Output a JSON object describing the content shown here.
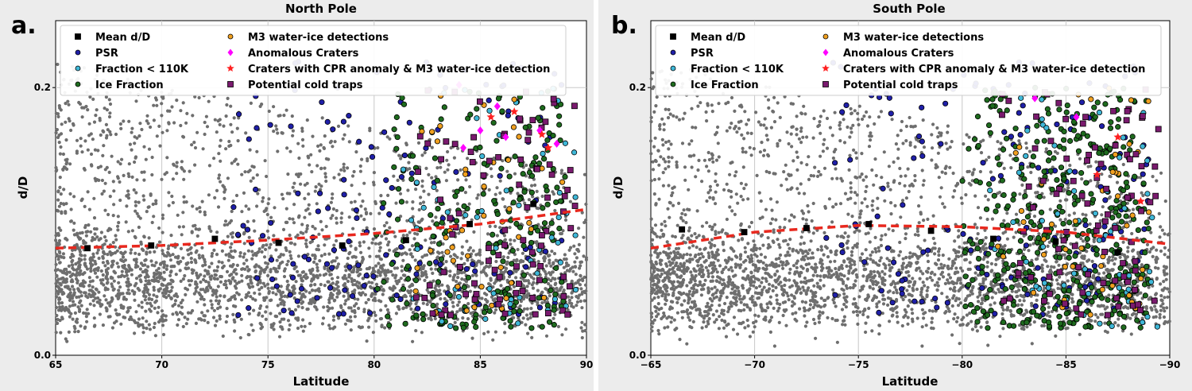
{
  "legend_entries": [
    {
      "label": "Mean d/D",
      "color": "#000000",
      "marker": "square"
    },
    {
      "label": "PSR",
      "color": "#1f1fa8",
      "marker": "circle"
    },
    {
      "label": "Fraction < 110K",
      "color": "#3fb8d8",
      "marker": "circle"
    },
    {
      "label": "Ice Fraction",
      "color": "#1e6b1e",
      "marker": "circle"
    },
    {
      "label": "M3 water-ice detections",
      "color": "#f0a020",
      "marker": "circle"
    },
    {
      "label": "Anomalous Craters",
      "color": "#ff00ff",
      "marker": "diamond"
    },
    {
      "label": "Craters with CPR anomaly & M3 water-ice detection",
      "color": "#ff2020",
      "marker": "star"
    },
    {
      "label": "Potential cold traps",
      "color": "#7a1a6e",
      "marker": "square"
    }
  ],
  "chart_data": [
    {
      "panel_label": "a.",
      "title": "North Pole",
      "type": "scatter",
      "xlabel": "Latitude",
      "ylabel": "d/D",
      "xlim": [
        65,
        90
      ],
      "ylim": [
        0.0,
        0.25
      ],
      "xticks": [
        65,
        70,
        75,
        80,
        85,
        90
      ],
      "xtick_labels": [
        "65",
        "70",
        "75",
        "80",
        "85",
        "90"
      ],
      "yticks": [
        0.0,
        0.2
      ],
      "ytick_labels": [
        "0.0",
        "0.2"
      ],
      "grid": true,
      "legend_position": "top",
      "trend_line": {
        "color": "#e8281e",
        "style": "dashed",
        "x": [
          65,
          70,
          75,
          80,
          85,
          90
        ],
        "y": [
          0.08,
          0.082,
          0.086,
          0.091,
          0.098,
          0.109
        ]
      },
      "series": [
        {
          "name": "Mean d/D",
          "x": [
            66.5,
            69.5,
            72.5,
            75.5,
            78.5,
            81.5,
            84.5,
            87.5
          ],
          "y": [
            0.08,
            0.082,
            0.087,
            0.084,
            0.082,
            0.086,
            0.098,
            0.113
          ]
        },
        {
          "name": "Anomalous Craters",
          "x": [
            84,
            84.2,
            85,
            85.8,
            86.2,
            87.8,
            88.6
          ],
          "y": [
            0.202,
            0.155,
            0.168,
            0.186,
            0.163,
            0.168,
            0.158
          ]
        },
        {
          "name": "Craters with CPR anomaly & M3 water-ice detection",
          "x": [
            86.6,
            87.9,
            88.2,
            85.5
          ],
          "y": [
            0.182,
            0.165,
            0.155,
            0.178
          ]
        }
      ]
    },
    {
      "panel_label": "b.",
      "title": "South Pole",
      "type": "scatter",
      "xlabel": "Latitude",
      "ylabel": "d/D",
      "xlim": [
        -65,
        -90
      ],
      "ylim": [
        0.0,
        0.25
      ],
      "xticks": [
        -65,
        -70,
        -75,
        -80,
        -85,
        -90
      ],
      "xtick_labels": [
        "−65",
        "−70",
        "−75",
        "−80",
        "−85",
        "−90"
      ],
      "yticks": [
        0.0,
        0.2
      ],
      "ytick_labels": [
        "0.0",
        "0.2"
      ],
      "grid": true,
      "legend_position": "top",
      "trend_line": {
        "color": "#e8281e",
        "style": "dashed",
        "x": [
          -65,
          -70,
          -75,
          -80,
          -85,
          -90
        ],
        "y": [
          0.08,
          0.092,
          0.097,
          0.096,
          0.092,
          0.083
        ]
      },
      "series": [
        {
          "name": "Mean d/D",
          "x": [
            -66.5,
            -69.5,
            -72.5,
            -75.5,
            -78.5,
            -81.5,
            -84.5,
            -87.5
          ],
          "y": [
            0.094,
            0.092,
            0.095,
            0.098,
            0.093,
            0.087,
            0.085,
            0.077
          ]
        },
        {
          "name": "Anomalous Craters",
          "x": [
            -83.5,
            -85.5
          ],
          "y": [
            0.192,
            0.178
          ]
        },
        {
          "name": "Craters with CPR anomaly & M3 water-ice detection",
          "x": [
            -86.5,
            -87.5,
            -88.6
          ],
          "y": [
            0.135,
            0.163,
            0.115
          ]
        }
      ]
    }
  ]
}
